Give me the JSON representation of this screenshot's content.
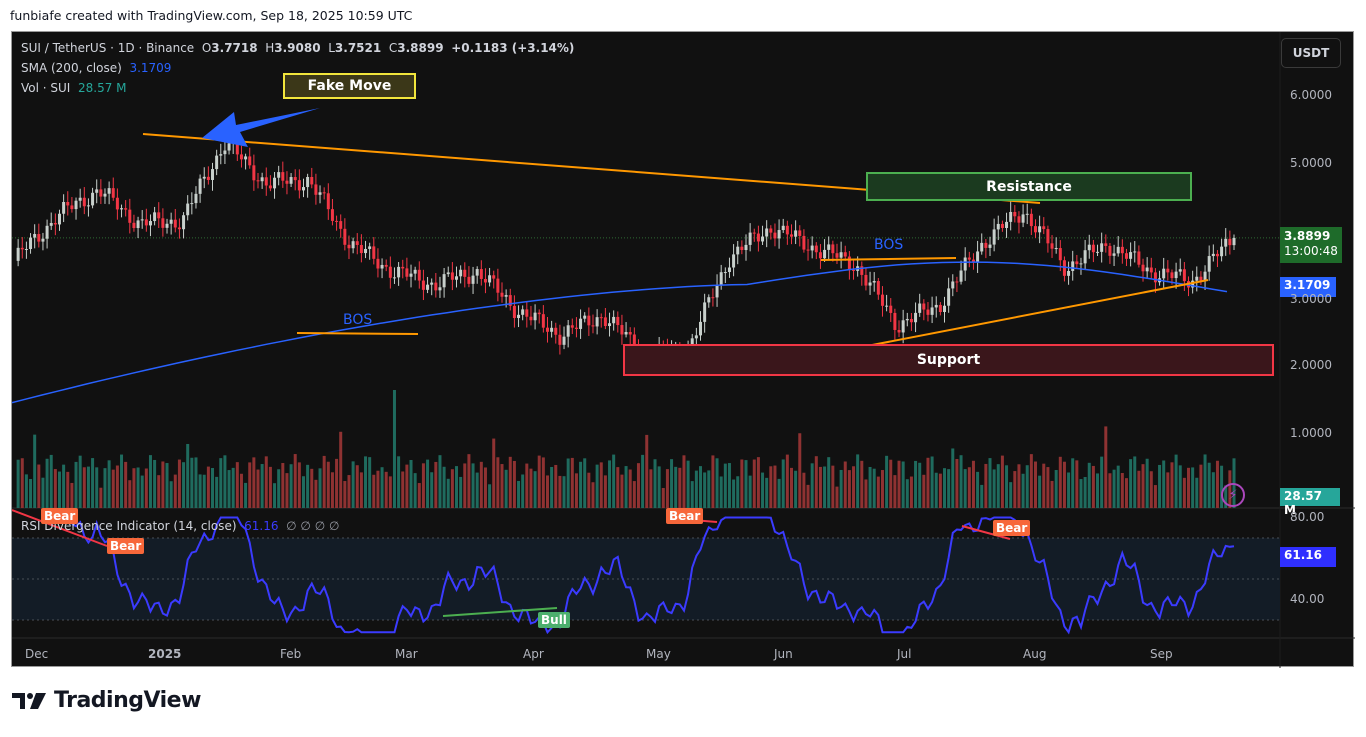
{
  "caption": "funbiafe created with TradingView.com, Sep 18, 2025 10:59 UTC",
  "header": {
    "symbol": "SUI / TetherUS · 1D · Binance",
    "open_label": "O",
    "open": "3.7718",
    "high_label": "H",
    "high": "3.9080",
    "low_label": "L",
    "low": "3.7521",
    "close_label": "C",
    "close": "3.8899",
    "change": "+0.1183 (+3.14%)",
    "sma_label": "SMA (200, close)",
    "sma_value": "3.1709",
    "vol_label": "Vol · SUI",
    "vol_value": "28.57 M",
    "currency_button": "USDT"
  },
  "rsi_legend": {
    "label": "RSI Divergence Indicator (14, close)",
    "value": "61.16",
    "extras": "∅ ∅ ∅ ∅"
  },
  "price_axis": {
    "ticks": [
      "6.0000",
      "5.0000",
      "4.0000",
      "3.0000",
      "2.0000",
      "1.0000"
    ],
    "last_price_tag": "3.8899",
    "countdown": "13:00:48",
    "sma_tag": "3.1709",
    "volume_tag": "28.57 M"
  },
  "rsi_axis": {
    "ticks": [
      "80.00",
      "40.00"
    ],
    "value_tag": "61.16"
  },
  "time_axis": [
    "Dec",
    "2025",
    "Feb",
    "Mar",
    "Apr",
    "May",
    "Jun",
    "Jul",
    "Aug",
    "Sep"
  ],
  "annotations": {
    "fake_move": "Fake Move",
    "resistance": "Resistance",
    "support": "Support",
    "bos_1": "BOS",
    "bos_2": "BOS",
    "rsi_labels": [
      "Bear",
      "Bear",
      "Bear",
      "Bear",
      "Bull"
    ]
  },
  "colors": {
    "bull": "#c8d0cc",
    "bear": "#f23645",
    "vol_up": "#1f6b5e",
    "vol_down": "#8f3232",
    "sma": "#2962ff",
    "rsi": "#3b3bff",
    "trend": "#ff9800",
    "resistance": "#4caf50",
    "support": "#f23645",
    "label_bear": "#f7673a",
    "label_bull": "#4caf6e"
  },
  "brand": "TradingView",
  "chart_data": [
    {
      "type": "candlestick",
      "title": "SUI / TetherUS · 1D · Binance",
      "ylabel": "USDT",
      "ylim": [
        1.0,
        6.0
      ],
      "x": [
        "Dec",
        "2025",
        "Feb",
        "Mar",
        "Apr",
        "May",
        "Jun",
        "Jul",
        "Aug",
        "Sep"
      ],
      "approx_close_path": [
        {
          "date": "Nov 26",
          "close": 3.55
        },
        {
          "date": "Dec 5",
          "close": 4.2
        },
        {
          "date": "Dec 12",
          "close": 4.6
        },
        {
          "date": "Dec 20",
          "close": 4.1
        },
        {
          "date": "Dec 28",
          "close": 4.15
        },
        {
          "date": "Jan 6",
          "close": 5.3
        },
        {
          "date": "Jan 12",
          "close": 4.7
        },
        {
          "date": "Jan 18",
          "close": 4.75
        },
        {
          "date": "Jan 28",
          "close": 3.8
        },
        {
          "date": "Feb 3",
          "close": 3.4
        },
        {
          "date": "Feb 12",
          "close": 3.2
        },
        {
          "date": "Feb 22",
          "close": 3.4
        },
        {
          "date": "Mar 3",
          "close": 2.8
        },
        {
          "date": "Mar 10",
          "close": 2.45
        },
        {
          "date": "Mar 25",
          "close": 2.75
        },
        {
          "date": "Apr 7",
          "close": 2.15
        },
        {
          "date": "Apr 20",
          "close": 2.2
        },
        {
          "date": "Apr 24",
          "close": 3.6
        },
        {
          "date": "May 12",
          "close": 4.05
        },
        {
          "date": "May 25",
          "close": 3.75
        },
        {
          "date": "Jun 10",
          "close": 3.5
        },
        {
          "date": "Jun 22",
          "close": 2.6
        },
        {
          "date": "Jul 5",
          "close": 2.9
        },
        {
          "date": "Jul 12",
          "close": 3.8
        },
        {
          "date": "Jul 27",
          "close": 4.3
        },
        {
          "date": "Aug 3",
          "close": 3.45
        },
        {
          "date": "Aug 12",
          "close": 3.8
        },
        {
          "date": "Aug 25",
          "close": 3.4
        },
        {
          "date": "Sep 1",
          "close": 3.25
        },
        {
          "date": "Sep 18",
          "close": 3.8899
        }
      ],
      "last": {
        "open": 3.7718,
        "high": 3.908,
        "low": 3.7521,
        "close": 3.8899,
        "change": 0.1183,
        "change_pct": 3.14
      },
      "series": [
        {
          "name": "SMA (200, close)",
          "last": 3.1709
        }
      ],
      "zones": [
        {
          "name": "Resistance",
          "low": 4.55,
          "high": 4.95
        },
        {
          "name": "Support",
          "low": 1.85,
          "high": 2.35
        }
      ],
      "annotations": [
        "Fake Move (Jan 2025 high ~5.37)",
        "BOS (Feb ~2.45)",
        "BOS (Jun ~3.6)",
        "Descending trendline 5.37 → 4.45",
        "Ascending trendline 2.3 → 3.25"
      ]
    },
    {
      "type": "bar",
      "title": "Vol · SUI",
      "last": "28.57 M",
      "peak_date": "Feb 3",
      "colors": {
        "up": "#1f6b5e",
        "down": "#8f3232"
      }
    },
    {
      "type": "line",
      "title": "RSI Divergence Indicator (14, close)",
      "ylim": [
        20,
        85
      ],
      "ticks": [
        80,
        40
      ],
      "bands": [
        30,
        50,
        70
      ],
      "last": 61.16,
      "divergences": [
        {
          "type": "Bear",
          "x": "Dec 2024"
        },
        {
          "type": "Bear",
          "x": "Dec 2024"
        },
        {
          "type": "Bull",
          "x": "Apr 2025"
        },
        {
          "type": "Bear",
          "x": "May 2025"
        },
        {
          "type": "Bear",
          "x": "Jul 2025"
        }
      ]
    }
  ]
}
